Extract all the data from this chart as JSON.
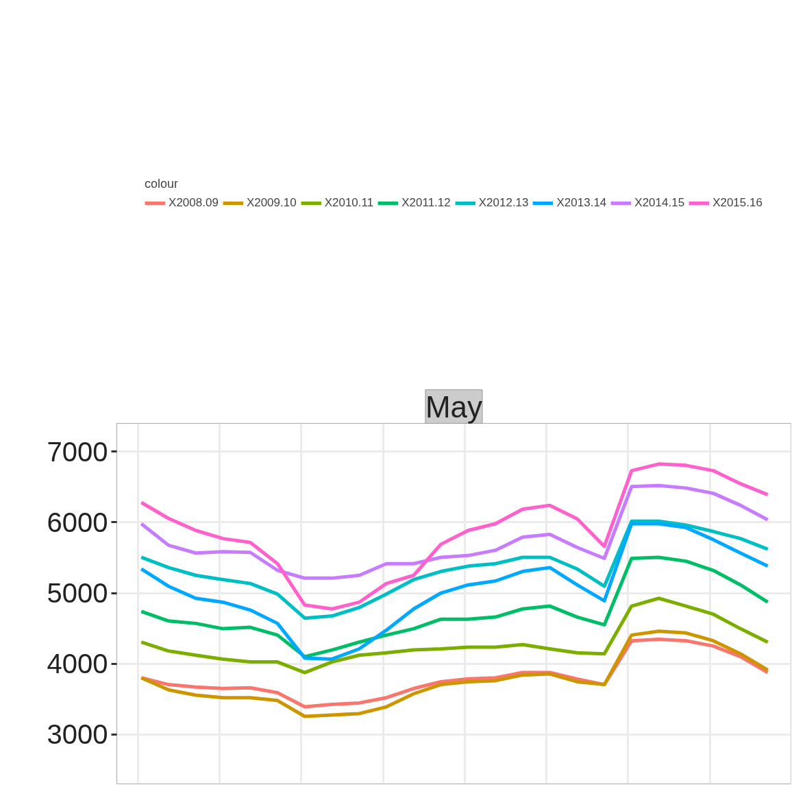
{
  "chart_data": {
    "type": "line",
    "title": "May",
    "legend_title": "colour",
    "legend": "top",
    "grid": true,
    "categories": [
      null,
      null,
      null,
      null,
      null,
      null,
      null,
      null,
      null,
      null,
      null,
      null,
      null,
      null,
      null,
      null,
      null,
      null,
      null,
      null,
      null,
      null,
      null,
      null
    ],
    "ylim": [
      2300,
      7400
    ],
    "yticks": [
      3000,
      4000,
      5000,
      6000,
      7000
    ],
    "tick_labels": "y",
    "series": [
      {
        "name": "X2008.09",
        "color": "#f8766d",
        "values": [
          3800,
          3705,
          3670,
          3650,
          3660,
          3590,
          3390,
          3425,
          3445,
          3520,
          3650,
          3745,
          3785,
          3800,
          3875,
          3875,
          3785,
          3705,
          4325,
          4345,
          4325,
          4250,
          4100,
          3875
        ]
      },
      {
        "name": "X2009.10",
        "color": "#cd9600",
        "values": [
          3800,
          3630,
          3555,
          3520,
          3520,
          3480,
          3255,
          3275,
          3295,
          3390,
          3575,
          3705,
          3745,
          3760,
          3840,
          3855,
          3745,
          3705,
          4405,
          4460,
          4435,
          4325,
          4140,
          3910
        ]
      },
      {
        "name": "X2010.11",
        "color": "#7cae00",
        "values": [
          4305,
          4180,
          4120,
          4065,
          4025,
          4025,
          3875,
          4025,
          4120,
          4155,
          4195,
          4210,
          4235,
          4235,
          4270,
          4210,
          4155,
          4140,
          4815,
          4925,
          4815,
          4700,
          4495,
          4305
        ]
      },
      {
        "name": "X2011.12",
        "color": "#00be67",
        "values": [
          4740,
          4605,
          4570,
          4495,
          4515,
          4405,
          4100,
          4195,
          4305,
          4405,
          4495,
          4630,
          4630,
          4660,
          4775,
          4815,
          4660,
          4550,
          5490,
          5505,
          5450,
          5320,
          5115,
          4870
        ]
      },
      {
        "name": "X2012.13",
        "color": "#00bfc4",
        "values": [
          5505,
          5360,
          5250,
          5190,
          5135,
          4985,
          4645,
          4675,
          4795,
          4985,
          5190,
          5305,
          5380,
          5415,
          5505,
          5505,
          5340,
          5095,
          6015,
          6015,
          5960,
          5870,
          5770,
          5620
        ]
      },
      {
        "name": "X2013.14",
        "color": "#00a9ff",
        "values": [
          5340,
          5095,
          4925,
          4870,
          4760,
          4570,
          4080,
          4065,
          4210,
          4475,
          4775,
          5000,
          5115,
          5170,
          5305,
          5360,
          5115,
          4890,
          5980,
          5980,
          5925,
          5755,
          5565,
          5380
        ]
      },
      {
        "name": "X2014.15",
        "color": "#c77cff",
        "values": [
          5980,
          5675,
          5565,
          5585,
          5575,
          5320,
          5210,
          5210,
          5250,
          5415,
          5415,
          5505,
          5530,
          5605,
          5790,
          5830,
          5645,
          5490,
          6505,
          6520,
          6485,
          6410,
          6240,
          6035
        ]
      },
      {
        "name": "X2015.16",
        "color": "#ff61cc",
        "values": [
          6280,
          6055,
          5885,
          5770,
          5715,
          5415,
          4830,
          4775,
          4870,
          5135,
          5250,
          5690,
          5885,
          5980,
          6185,
          6240,
          6050,
          5660,
          6730,
          6825,
          6805,
          6730,
          6545,
          6390
        ]
      }
    ]
  }
}
